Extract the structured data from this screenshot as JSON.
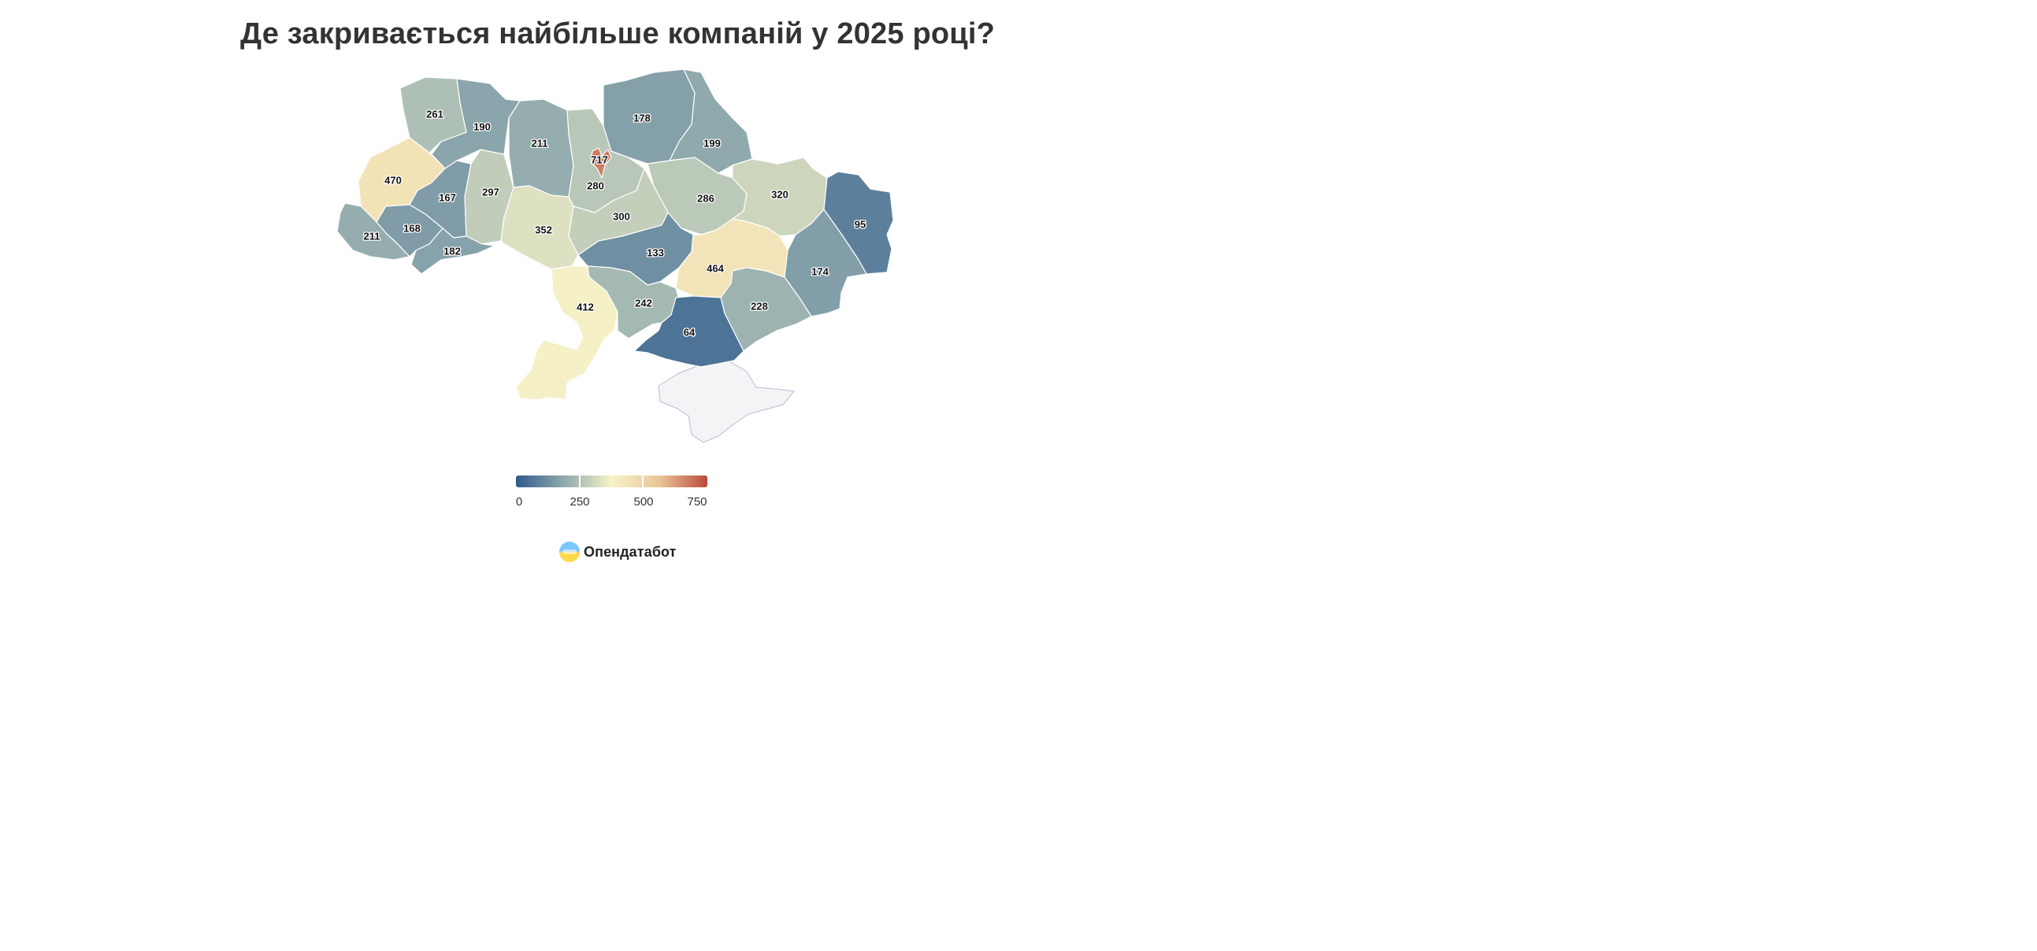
{
  "title": "Де закривається найбільше компаній у 2025 році?",
  "brand": {
    "name": "Опендатабот",
    "icon": "opendatabot-logo-icon"
  },
  "legend": {
    "ticks": [
      "0",
      "250",
      "500",
      "750"
    ],
    "min": 0,
    "max": 800,
    "colors": [
      "#2e5a8c",
      "#8fa9ad",
      "#f6f3c8",
      "#ebc597",
      "#b84a3e"
    ]
  },
  "regions": [
    {
      "id": "volyn",
      "value": 261
    },
    {
      "id": "rivne",
      "value": 190
    },
    {
      "id": "zhytomyr",
      "value": 211
    },
    {
      "id": "kyiv-oblast",
      "value": 280
    },
    {
      "id": "kyiv-city",
      "value": 717
    },
    {
      "id": "chernihiv",
      "value": 178
    },
    {
      "id": "sumy",
      "value": 199
    },
    {
      "id": "lviv",
      "value": 470
    },
    {
      "id": "ternopil",
      "value": 167
    },
    {
      "id": "khmelnytskyi",
      "value": 297
    },
    {
      "id": "vinnytsia",
      "value": 352
    },
    {
      "id": "cherkasy",
      "value": 300
    },
    {
      "id": "poltava",
      "value": 286
    },
    {
      "id": "kharkiv",
      "value": 320
    },
    {
      "id": "luhansk",
      "value": 95
    },
    {
      "id": "zakarpattia",
      "value": 211
    },
    {
      "id": "ivano-frankivsk",
      "value": 168
    },
    {
      "id": "chernivtsi",
      "value": 182
    },
    {
      "id": "kirovohrad",
      "value": 133
    },
    {
      "id": "dnipropetrovsk",
      "value": 464
    },
    {
      "id": "donetsk",
      "value": 174
    },
    {
      "id": "odesa",
      "value": 412
    },
    {
      "id": "mykolaiv",
      "value": 242
    },
    {
      "id": "zaporizhzhia",
      "value": 228
    },
    {
      "id": "kherson",
      "value": 64
    },
    {
      "id": "crimea",
      "value": null
    }
  ]
}
